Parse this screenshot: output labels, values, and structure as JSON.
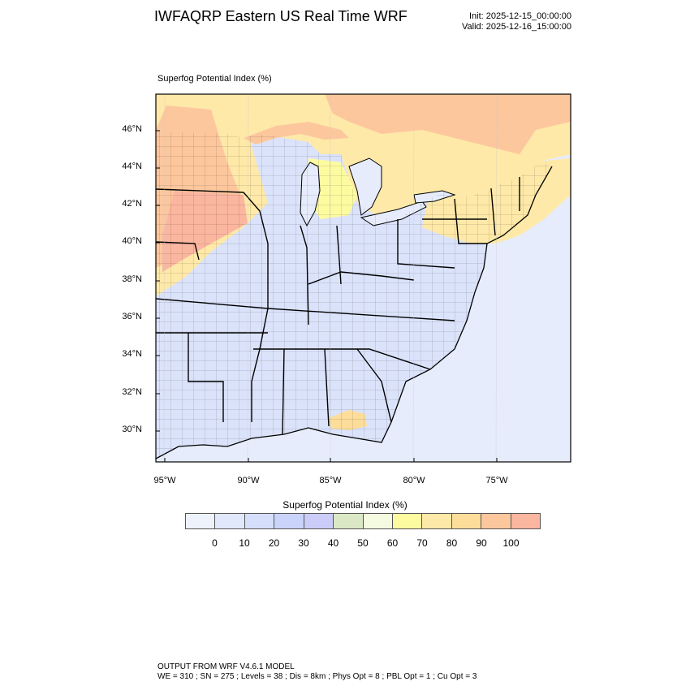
{
  "header": {
    "title": "IWFAQRP Eastern US Real Time WRF",
    "init": "Init: 2025-12-15_00:00:00",
    "valid": "Valid: 2025-12-16_15:00:00"
  },
  "panel": {
    "label": "Superfog Potential Index   (%)"
  },
  "map": {
    "lat_ticks": [
      "46°N",
      "44°N",
      "42°N",
      "40°N",
      "38°N",
      "36°N",
      "34°N",
      "32°N",
      "30°N"
    ],
    "lon_ticks": [
      "95°W",
      "90°W",
      "85°W",
      "80°W",
      "75°W"
    ],
    "colors": {
      "land": "#dbe3fb",
      "ocean": "#e6ecfb",
      "border": "#000000"
    }
  },
  "colorbar": {
    "title": "Superfog Potential Index  (%)",
    "labels": [
      "0",
      "10",
      "20",
      "30",
      "40",
      "50",
      "60",
      "70",
      "80",
      "90",
      "100"
    ],
    "colors": [
      "#eef2fa",
      "#e2e8fb",
      "#d5defb",
      "#cad4fb",
      "#cbcdf8",
      "#dbe8c6",
      "#f5fbe0",
      "#fdfba0",
      "#fee9a8",
      "#fddd9a",
      "#fdc79d",
      "#fbb6a0"
    ]
  },
  "footer": {
    "line1": "OUTPUT FROM WRF V4.6.1 MODEL",
    "line2": "WE = 310 ; SN = 275 ; Levels = 38 ; Dis = 8km ; Phys Opt = 8 ; PBL Opt = 1 ; Cu Opt = 3"
  }
}
